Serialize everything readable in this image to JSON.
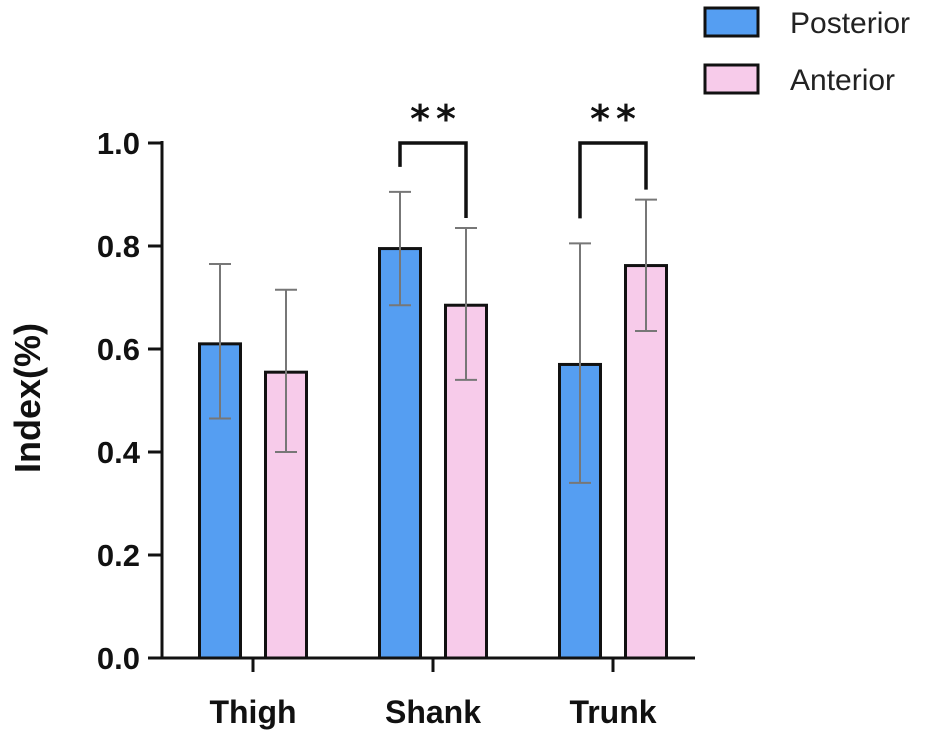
{
  "chart_data": {
    "type": "bar",
    "categories": [
      "Thigh",
      "Shank",
      "Trunk"
    ],
    "series": [
      {
        "name": "Posterior",
        "color": "#559ef2",
        "values": [
          0.61,
          0.795,
          0.57
        ],
        "err_high": [
          0.765,
          0.905,
          0.805
        ],
        "err_low": [
          0.465,
          0.685,
          0.34
        ]
      },
      {
        "name": "Anterior",
        "color": "#f7cbea",
        "values": [
          0.555,
          0.685,
          0.762
        ],
        "err_high": [
          0.715,
          0.835,
          0.89
        ],
        "err_low": [
          0.4,
          0.54,
          0.635
        ]
      }
    ],
    "ylabel": "Index(%)",
    "ylim": [
      0,
      1.0
    ],
    "yticks": [
      "0.0",
      "0.2",
      "0.4",
      "0.6",
      "0.8",
      "1.0"
    ],
    "ytick_values": [
      0,
      0.2,
      0.4,
      0.6,
      0.8,
      1.0
    ],
    "legend": "top-right",
    "grid": false,
    "significance": [
      {
        "category": "Shank",
        "label": "**"
      },
      {
        "category": "Trunk",
        "label": "**"
      }
    ]
  }
}
